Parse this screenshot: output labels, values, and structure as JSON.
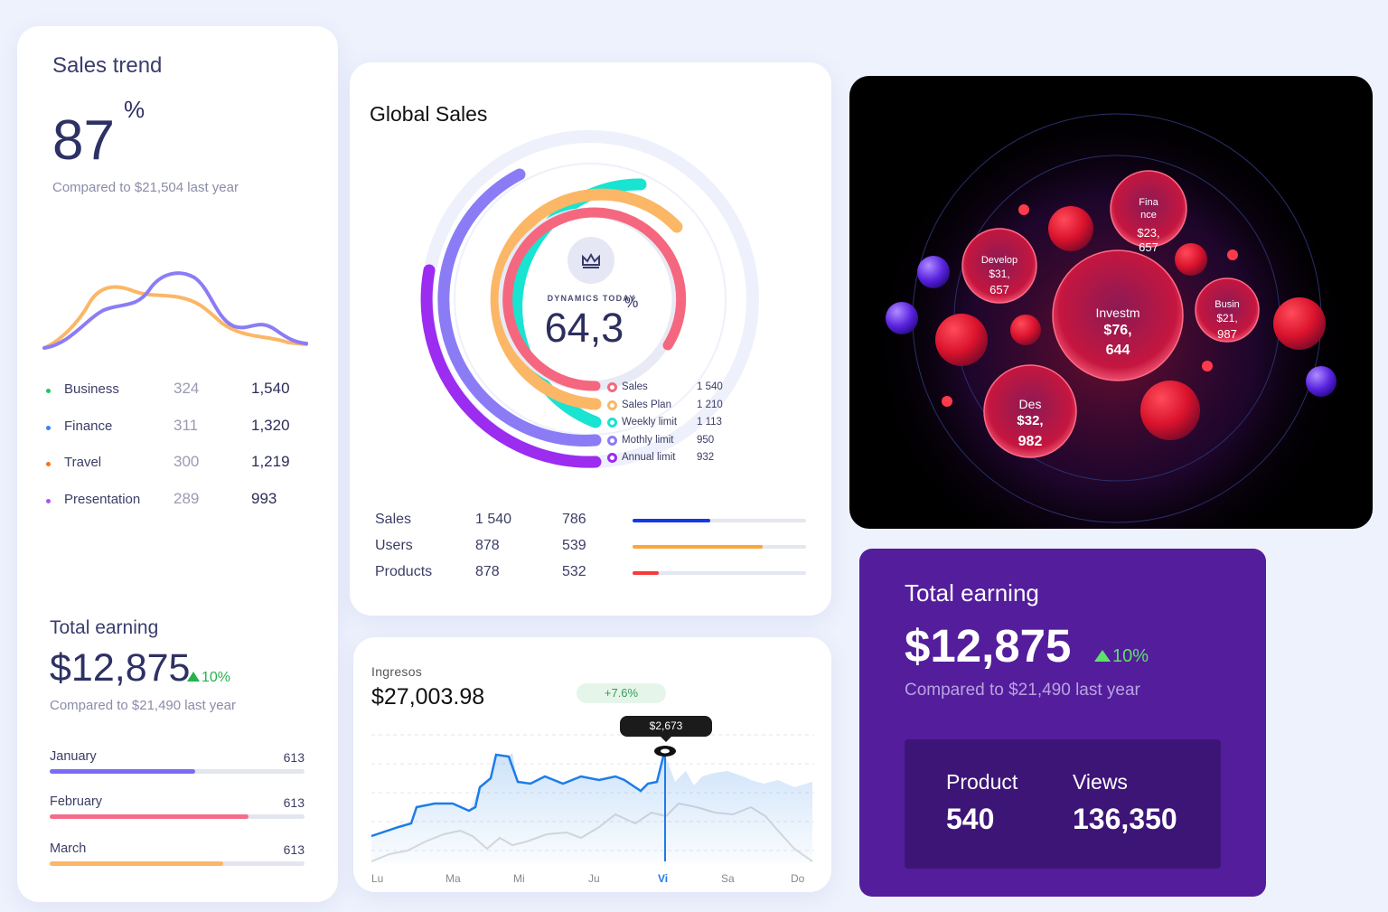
{
  "sales_trend": {
    "title": "Sales trend",
    "percent": "87",
    "percent_sign": "%",
    "subtitle": "Compared to $21,504 last year",
    "legend": [
      {
        "name": "Business",
        "v1": "324",
        "v2": "1,540",
        "color": "#22c55e"
      },
      {
        "name": "Finance",
        "v1": "311",
        "v2": "1,320",
        "color": "#3b82f6"
      },
      {
        "name": "Travel",
        "v1": "300",
        "v2": "1,219",
        "color": "#f97316"
      },
      {
        "name": "Presentation",
        "v1": "289",
        "v2": "993",
        "color": "#a855f7"
      }
    ],
    "total_title": "Total earning",
    "total_value": "$12,875",
    "total_pct": "10%",
    "total_sub": "Compared to $21,490 last year",
    "months": [
      {
        "label": "January",
        "value": "613",
        "fill": 0.57,
        "color": "#7b6cf6"
      },
      {
        "label": "February",
        "value": "613",
        "fill": 0.78,
        "color": "#f56c8a"
      },
      {
        "label": "March",
        "value": "613",
        "fill": 0.68,
        "color": "#fbb766"
      }
    ]
  },
  "global_sales": {
    "title": "Global Sales",
    "dynamics_label": "DYNAMICS TODAY",
    "dynamics_value": "64,3",
    "dynamics_sign": "%",
    "crown_icon": "crown-icon",
    "legend": [
      {
        "name": "Sales",
        "value": "1 540",
        "color": "#f5677f"
      },
      {
        "name": "Sales Plan",
        "value": "1 210",
        "color": "#fbb766"
      },
      {
        "name": "Weekly limit",
        "value": "1 113",
        "color": "#19e3d1"
      },
      {
        "name": "Mothly limit",
        "value": "950",
        "color": "#8b7cf6"
      },
      {
        "name": "Annual limit",
        "value": "932",
        "color": "#9b2cf0"
      }
    ],
    "table": [
      {
        "name": "Sales",
        "a": "1 540",
        "b": "786",
        "fill": 0.45,
        "color": "#1538e5"
      },
      {
        "name": "Users",
        "a": "878",
        "b": "539",
        "fill": 0.75,
        "color": "#fba63c"
      },
      {
        "name": "Products",
        "a": "878",
        "b": "532",
        "fill": 0.15,
        "color": "#f43b3b"
      }
    ]
  },
  "bubbles": {
    "labels": [
      {
        "id": "finance",
        "lines": [
          "Fina",
          "nce",
          "$23,",
          "657"
        ]
      },
      {
        "id": "develop",
        "lines": [
          "Develop",
          "$31,",
          "657"
        ]
      },
      {
        "id": "invest",
        "lines": [
          "Investm",
          "$76,",
          "644"
        ]
      },
      {
        "id": "business",
        "lines": [
          "Busin",
          "$21,",
          "987"
        ]
      },
      {
        "id": "design",
        "lines": [
          "Des",
          "$32,",
          "982"
        ]
      }
    ]
  },
  "ingresos": {
    "title": "Ingresos",
    "value": "$27,003.98",
    "badge": "+7.6%",
    "tooltip": "$2,673",
    "days": [
      "Lu",
      "Ma",
      "Mi",
      "Ju",
      "Vi",
      "Sa",
      "Do"
    ],
    "active_day": "Vi"
  },
  "purple": {
    "title": "Total earning",
    "value": "$12,875",
    "pct": "10%",
    "sub": "Compared to $21,490 last year",
    "product_label": "Product",
    "product_value": "540",
    "views_label": "Views",
    "views_value": "136,350"
  }
}
